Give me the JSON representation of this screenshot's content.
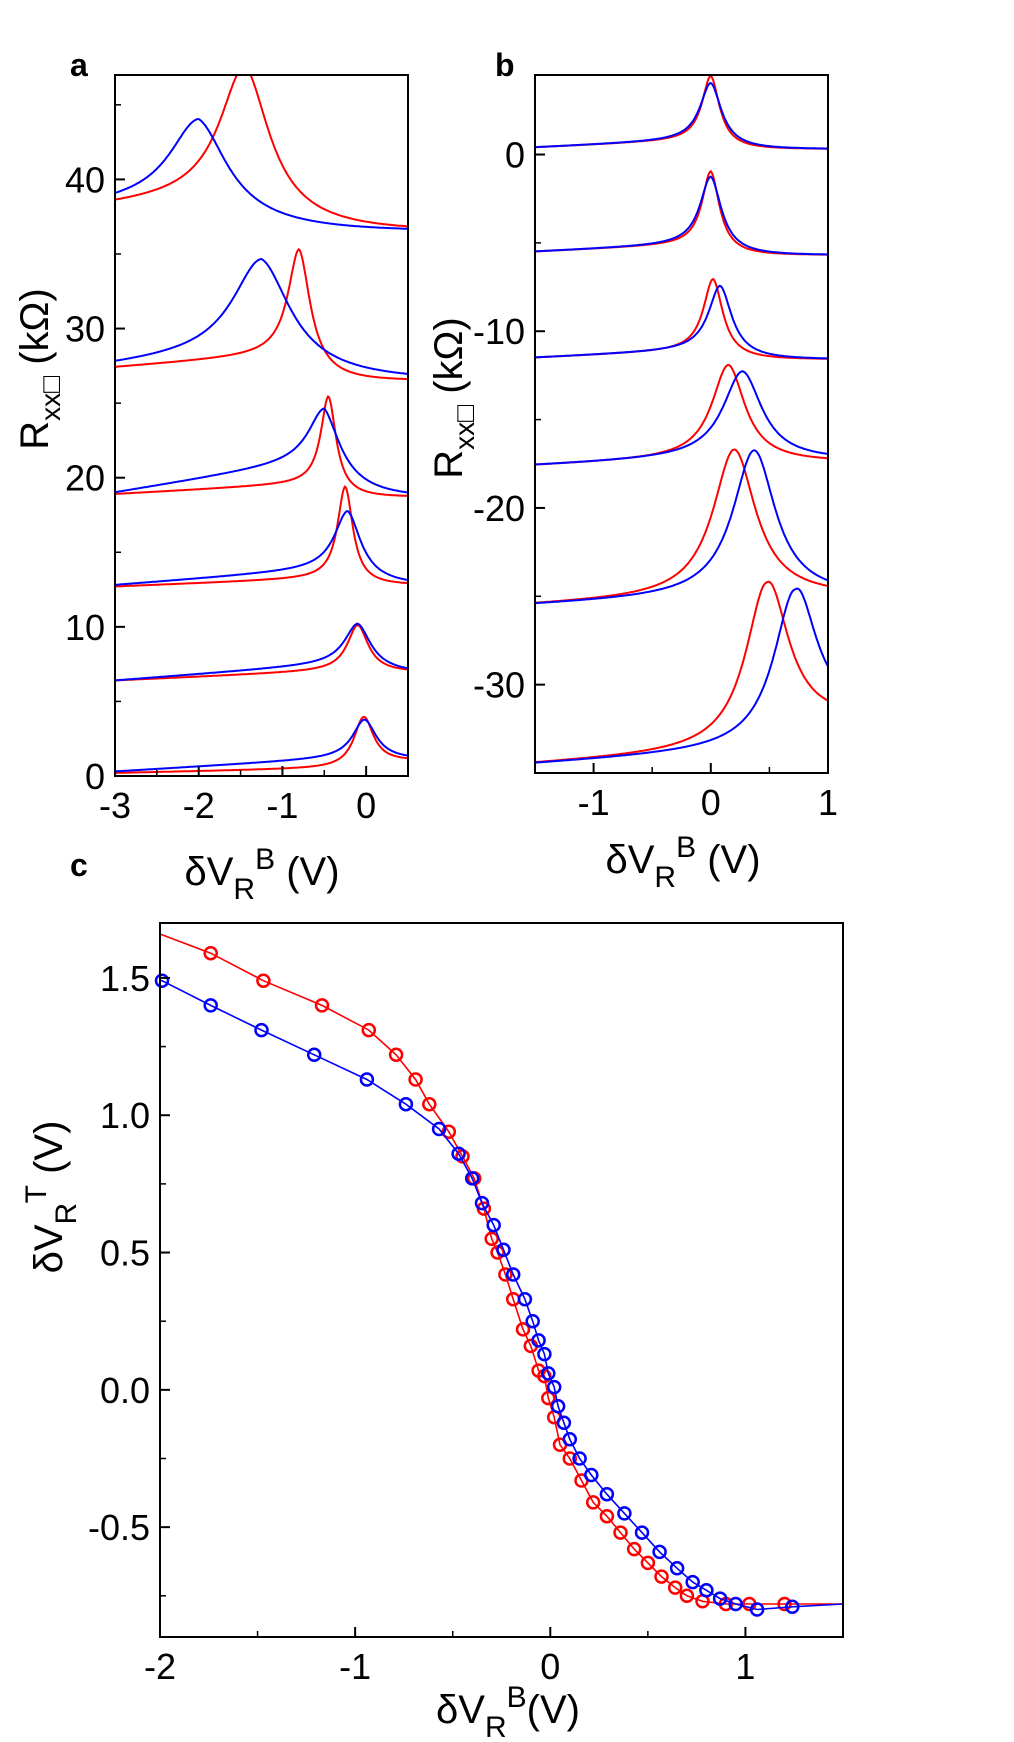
{
  "colors": {
    "red": "#ff0000",
    "blue": "#0000ff",
    "axis": "#000000"
  },
  "chart_data": [
    {
      "panel_label": "a",
      "type": "line",
      "xlabel": "δV",
      "xlabel_sub": "R",
      "xlabel_sup": "B",
      "xlabel_unit": " (V)",
      "ylabel": "R",
      "ylabel_sub": "xx□",
      "ylabel_unit": " (kΩ)",
      "xlim": [
        -3,
        0.5
      ],
      "ylim": [
        0,
        47
      ],
      "xticks": [
        -3,
        -2,
        -1,
        0
      ],
      "xtick_labels": [
        "-3",
        "-2",
        "-1",
        "0"
      ],
      "yticks": [
        0,
        10,
        20,
        30,
        40
      ],
      "ytick_labels": [
        "0",
        "10",
        "20",
        "30",
        "40"
      ],
      "grid": false,
      "curves": [
        {
          "color": "red",
          "base": 0.2,
          "slope": 0.12,
          "x0": -0.03,
          "amp": 3.4,
          "g": 0.14,
          "post": 1.0
        },
        {
          "color": "blue",
          "base": 0.3,
          "slope": 0.33,
          "x0": -0.02,
          "amp": 2.5,
          "g": 0.17,
          "post": 1.1
        },
        {
          "color": "red",
          "base": 6.4,
          "slope": 0.25,
          "x0": -0.1,
          "amp": 3.0,
          "g": 0.15,
          "post": 6.95
        },
        {
          "color": "blue",
          "base": 6.4,
          "slope": 0.42,
          "x0": -0.1,
          "amp": 2.6,
          "g": 0.19,
          "post": 6.9
        },
        {
          "color": "red",
          "base": 12.7,
          "slope": 0.22,
          "x0": -0.25,
          "amp": 6.1,
          "g": 0.11,
          "post": 12.8
        },
        {
          "color": "blue",
          "base": 12.8,
          "slope": 0.42,
          "x0": -0.22,
          "amp": 3.8,
          "g": 0.19,
          "post": 12.8
        },
        {
          "color": "red",
          "base": 18.9,
          "slope": 0.3,
          "x0": -0.45,
          "amp": 5.8,
          "g": 0.11,
          "post": 18.7
        },
        {
          "color": "blue",
          "base": 19.0,
          "slope": 0.9,
          "x0": -0.5,
          "amp": 3.4,
          "g": 0.23,
          "post": 18.7
        },
        {
          "color": "red",
          "base": 27.4,
          "slope": 0.42,
          "x0": -0.8,
          "amp": 7.0,
          "g": 0.16,
          "post": 26.5
        },
        {
          "color": "blue",
          "base": 27.5,
          "slope": 0.55,
          "x0": -1.25,
          "amp": 6.2,
          "g": 0.42,
          "post": 26.5
        },
        {
          "color": "red",
          "base": 38.2,
          "slope": 0.45,
          "x0": -1.45,
          "amp": 8.7,
          "g": 0.36,
          "post": 36.5
        },
        {
          "color": "blue",
          "base": 38.3,
          "slope": 0.45,
          "x0": -2.0,
          "amp": 5.3,
          "g": 0.42,
          "post": 36.5
        }
      ]
    },
    {
      "panel_label": "b",
      "type": "line",
      "xlabel": "δV",
      "xlabel_sub": "R",
      "xlabel_sup": "B",
      "xlabel_unit": " (V)",
      "ylabel": "R",
      "ylabel_sub": "xx□",
      "ylabel_unit": " (kΩ)",
      "xlim": [
        -1.5,
        1
      ],
      "ylim": [
        -35,
        4.5
      ],
      "xticks": [
        -1,
        0,
        1
      ],
      "xtick_labels": [
        "-1",
        "0",
        "1"
      ],
      "yticks": [
        -30,
        -20,
        -10,
        0
      ],
      "ytick_labels": [
        "-30",
        "-20",
        "-10",
        "0"
      ],
      "grid": false,
      "curves": [
        {
          "color": "red",
          "base": 0.4,
          "slope": 0.3,
          "x0": 0.0,
          "amp": 3.6,
          "g": 0.09,
          "post": 0.3
        },
        {
          "color": "blue",
          "base": 0.4,
          "slope": 0.3,
          "x0": 0.0,
          "amp": 3.2,
          "g": 0.11,
          "post": 0.3
        },
        {
          "color": "red",
          "base": -5.5,
          "slope": 0.3,
          "x0": 0.0,
          "amp": 4.1,
          "g": 0.09,
          "post": -5.7
        },
        {
          "color": "blue",
          "base": -5.5,
          "slope": 0.3,
          "x0": 0.0,
          "amp": 3.8,
          "g": 0.11,
          "post": -5.7
        },
        {
          "color": "red",
          "base": -11.5,
          "slope": 0.3,
          "x0": 0.02,
          "amp": 4.0,
          "g": 0.1,
          "post": -11.6
        },
        {
          "color": "blue",
          "base": -11.5,
          "slope": 0.3,
          "x0": 0.08,
          "amp": 3.6,
          "g": 0.12,
          "post": -11.6
        },
        {
          "color": "red",
          "base": -17.6,
          "slope": 0.3,
          "x0": 0.15,
          "amp": 5.2,
          "g": 0.17,
          "post": -17.4
        },
        {
          "color": "blue",
          "base": -17.6,
          "slope": 0.3,
          "x0": 0.27,
          "amp": 4.8,
          "g": 0.2,
          "post": -17.3
        },
        {
          "color": "red",
          "base": -25.5,
          "slope": 0.3,
          "x0": 0.2,
          "amp": 8.3,
          "g": 0.22,
          "post": -25.0
        },
        {
          "color": "blue",
          "base": -25.5,
          "slope": 0.3,
          "x0": 0.37,
          "amp": 8.2,
          "g": 0.22,
          "post": -25.0
        },
        {
          "color": "red",
          "base": -34.5,
          "slope": 0.4,
          "x0": 0.48,
          "amp": 9.5,
          "g": 0.22,
          "post": -32.0
        },
        {
          "color": "blue",
          "base": -34.5,
          "slope": 0.4,
          "x0": 0.72,
          "amp": 9.0,
          "g": 0.22,
          "post": -31.5
        }
      ]
    },
    {
      "panel_label": "c",
      "type": "scatter",
      "xlabel": "δV",
      "xlabel_sub": "R",
      "xlabel_sup": "B",
      "xlabel_unit": "(V)",
      "ylabel": "δV",
      "ylabel_sub": "R",
      "ylabel_sup": "T",
      "ylabel_unit": " (V)",
      "xlim": [
        -2,
        1.5
      ],
      "ylim": [
        -0.9,
        1.7
      ],
      "xticks": [
        -2,
        -1,
        0,
        1
      ],
      "xtick_labels": [
        "-2",
        "-1",
        "0",
        "1"
      ],
      "yticks": [
        -0.5,
        0.0,
        0.5,
        1.0,
        1.5
      ],
      "ytick_labels": [
        "-0.5",
        "0.0",
        "0.5",
        "1.0",
        "1.5"
      ],
      "grid": false,
      "series": [
        {
          "color": "red",
          "line_start": [
            -2.0,
            1.66
          ],
          "line_end": [
            1.5,
            -0.78
          ],
          "x": [
            -1.74,
            -1.47,
            -1.17,
            -0.93,
            -0.79,
            -0.69,
            -0.62,
            -0.52,
            -0.45,
            -0.39,
            -0.34,
            -0.3,
            -0.27,
            -0.23,
            -0.19,
            -0.14,
            -0.1,
            -0.06,
            -0.03,
            -0.01,
            0.02,
            0.05,
            0.1,
            0.16,
            0.22,
            0.29,
            0.36,
            0.43,
            0.5,
            0.57,
            0.64,
            0.7,
            0.78,
            0.9,
            1.02,
            1.2
          ],
          "y": [
            1.59,
            1.49,
            1.4,
            1.31,
            1.22,
            1.13,
            1.04,
            0.94,
            0.85,
            0.77,
            0.66,
            0.55,
            0.5,
            0.42,
            0.33,
            0.22,
            0.16,
            0.07,
            0.05,
            -0.03,
            -0.1,
            -0.2,
            -0.25,
            -0.33,
            -0.41,
            -0.46,
            -0.52,
            -0.58,
            -0.63,
            -0.68,
            -0.72,
            -0.75,
            -0.77,
            -0.78,
            -0.78,
            -0.78
          ]
        },
        {
          "color": "blue",
          "line_start": [
            -2.0,
            1.49
          ],
          "line_end": [
            1.5,
            -0.78
          ],
          "x": [
            -1.99,
            -1.74,
            -1.48,
            -1.21,
            -0.94,
            -0.74,
            -0.57,
            -0.47,
            -0.4,
            -0.35,
            -0.29,
            -0.24,
            -0.19,
            -0.13,
            -0.09,
            -0.06,
            -0.03,
            -0.01,
            0.02,
            0.04,
            0.07,
            0.1,
            0.15,
            0.21,
            0.29,
            0.38,
            0.47,
            0.56,
            0.65,
            0.73,
            0.8,
            0.87,
            0.95,
            1.06,
            1.24
          ],
          "y": [
            1.49,
            1.4,
            1.31,
            1.22,
            1.13,
            1.04,
            0.95,
            0.86,
            0.77,
            0.68,
            0.6,
            0.51,
            0.42,
            0.33,
            0.25,
            0.18,
            0.13,
            0.06,
            0.01,
            -0.06,
            -0.12,
            -0.18,
            -0.25,
            -0.31,
            -0.38,
            -0.45,
            -0.52,
            -0.59,
            -0.65,
            -0.7,
            -0.73,
            -0.76,
            -0.78,
            -0.8,
            -0.79
          ]
        }
      ]
    }
  ]
}
